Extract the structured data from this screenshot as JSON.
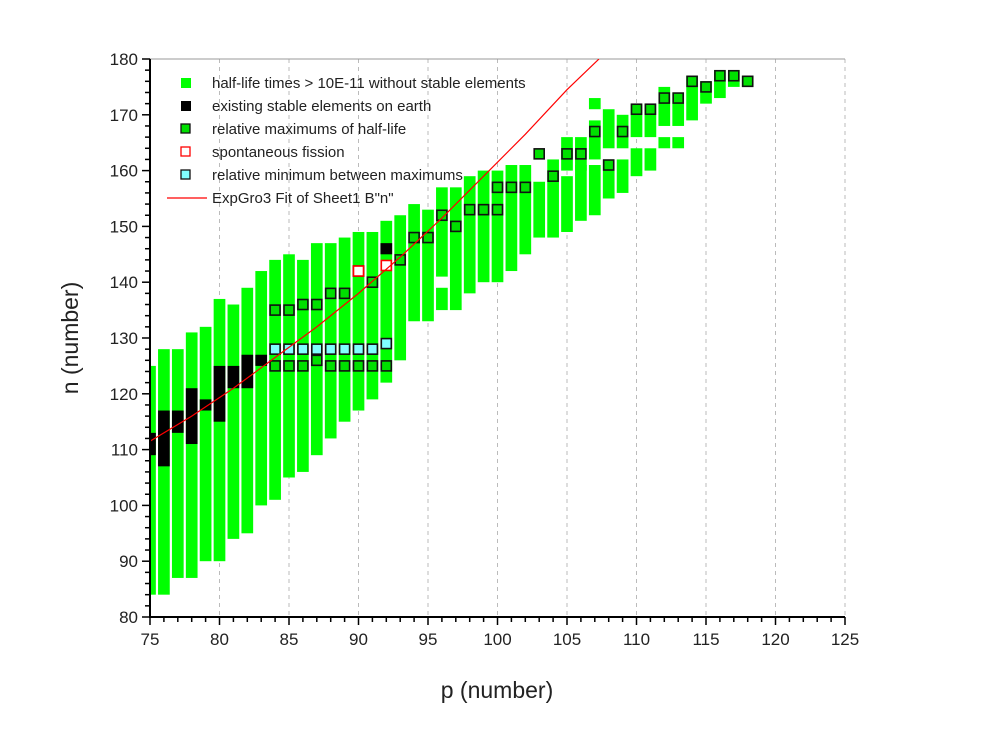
{
  "chart_data": {
    "type": "scatter",
    "xlabel": "p (number)",
    "ylabel": "n (number)",
    "xlim": [
      75,
      125
    ],
    "ylim": [
      80,
      180
    ],
    "xticks": [
      75,
      80,
      85,
      90,
      95,
      100,
      105,
      110,
      115,
      120,
      125
    ],
    "yticks": [
      80,
      90,
      100,
      110,
      120,
      130,
      140,
      150,
      160,
      170,
      180
    ],
    "grid": "vertical dashed",
    "legend_position": "top-left",
    "colors": {
      "halflife": "#00ff00",
      "stable": "#000000",
      "maxima": "#00e000",
      "fission": "#ff0000",
      "minimum": "#80ffff",
      "fit": "#ff0000"
    },
    "legend": [
      {
        "label": "half-life times > 10E-11 without stable elements",
        "kind": "halflife"
      },
      {
        "label": "existing stable elements on earth",
        "kind": "stable"
      },
      {
        "label": "relative maximums of half-life",
        "kind": "maxima"
      },
      {
        "label": "spontaneous fission",
        "kind": "fission"
      },
      {
        "label": "relative minimum between maximums",
        "kind": "minimum"
      },
      {
        "label": "ExpGro3 Fit of Sheet1 B\"n\"",
        "kind": "fit"
      }
    ],
    "halflife_ranges": [
      [
        75,
        84,
        125
      ],
      [
        76,
        84,
        128
      ],
      [
        77,
        87,
        128
      ],
      [
        78,
        87,
        131
      ],
      [
        79,
        90,
        132
      ],
      [
        80,
        90,
        137
      ],
      [
        81,
        94,
        136
      ],
      [
        82,
        95,
        139
      ],
      [
        83,
        100,
        142
      ],
      [
        84,
        101,
        144
      ],
      [
        85,
        105,
        145
      ],
      [
        86,
        106,
        144
      ],
      [
        87,
        109,
        147
      ],
      [
        88,
        112,
        147
      ],
      [
        89,
        115,
        148
      ],
      [
        90,
        117,
        149
      ],
      [
        91,
        119,
        149
      ],
      [
        92,
        122,
        151
      ],
      [
        93,
        126,
        152
      ],
      [
        94,
        133,
        154
      ],
      [
        95,
        133,
        153
      ],
      [
        96,
        141,
        157
      ],
      [
        96,
        135,
        139
      ],
      [
        97,
        135,
        157
      ],
      [
        98,
        138,
        159
      ],
      [
        99,
        140,
        160
      ],
      [
        100,
        140,
        160
      ],
      [
        101,
        142,
        161
      ],
      [
        102,
        145,
        161
      ],
      [
        103,
        148,
        158
      ],
      [
        104,
        148,
        162
      ],
      [
        105,
        160,
        166
      ],
      [
        105,
        149,
        159
      ],
      [
        106,
        160,
        166
      ],
      [
        106,
        151,
        161
      ],
      [
        107,
        171,
        173
      ],
      [
        107,
        162,
        169
      ],
      [
        107,
        152,
        161
      ],
      [
        108,
        164,
        171
      ],
      [
        108,
        155,
        162
      ],
      [
        109,
        164,
        170
      ],
      [
        109,
        156,
        162
      ],
      [
        110,
        166,
        172
      ],
      [
        110,
        159,
        164
      ],
      [
        111,
        166,
        172
      ],
      [
        111,
        160,
        164
      ],
      [
        112,
        168,
        175
      ],
      [
        112,
        164,
        166
      ],
      [
        113,
        168,
        174
      ],
      [
        113,
        164,
        166
      ],
      [
        114,
        169,
        177
      ],
      [
        115,
        172,
        176
      ],
      [
        116,
        173,
        178
      ],
      [
        117,
        175,
        178
      ],
      [
        118,
        175,
        177
      ]
    ],
    "stable_ranges": [
      [
        75,
        109,
        113
      ],
      [
        76,
        107,
        117
      ],
      [
        77,
        113,
        117
      ],
      [
        78,
        111,
        121
      ],
      [
        79,
        117,
        119
      ],
      [
        80,
        115,
        125
      ],
      [
        81,
        121,
        125
      ],
      [
        82,
        121,
        127
      ],
      [
        83,
        125,
        127
      ],
      [
        90,
        141,
        143
      ],
      [
        92,
        145,
        147
      ]
    ],
    "maxima": [
      [
        84,
        135
      ],
      [
        85,
        135
      ],
      [
        86,
        136
      ],
      [
        87,
        136
      ],
      [
        88,
        138
      ],
      [
        89,
        138
      ],
      [
        90,
        142
      ],
      [
        91,
        140
      ],
      [
        93,
        144
      ],
      [
        94,
        148
      ],
      [
        95,
        148
      ],
      [
        96,
        152
      ],
      [
        97,
        150
      ],
      [
        98,
        153
      ],
      [
        99,
        153
      ],
      [
        100,
        153
      ],
      [
        100,
        157
      ],
      [
        101,
        157
      ],
      [
        102,
        157
      ],
      [
        103,
        163
      ],
      [
        104,
        159
      ],
      [
        105,
        163
      ],
      [
        106,
        163
      ],
      [
        107,
        167
      ],
      [
        108,
        161
      ],
      [
        109,
        167
      ],
      [
        110,
        171
      ],
      [
        111,
        171
      ],
      [
        112,
        173
      ],
      [
        113,
        173
      ],
      [
        114,
        176
      ],
      [
        115,
        175
      ],
      [
        116,
        177
      ],
      [
        117,
        177
      ],
      [
        118,
        176
      ],
      [
        84,
        125
      ],
      [
        85,
        125
      ],
      [
        86,
        125
      ],
      [
        87,
        126
      ],
      [
        88,
        125
      ],
      [
        89,
        125
      ],
      [
        90,
        125
      ],
      [
        91,
        125
      ],
      [
        92,
        125
      ]
    ],
    "spontaneous_fission": [
      [
        90,
        142
      ],
      [
        92,
        143
      ]
    ],
    "relative_minimum": [
      [
        84,
        128
      ],
      [
        85,
        128
      ],
      [
        86,
        128
      ],
      [
        87,
        128
      ],
      [
        88,
        128
      ],
      [
        89,
        128
      ],
      [
        90,
        128
      ],
      [
        91,
        128
      ],
      [
        92,
        129
      ]
    ],
    "fit": {
      "name": "ExpGro3 Fit of Sheet1 B\"n\"",
      "x": [
        75,
        78,
        81,
        84,
        87,
        90,
        93,
        96,
        99,
        102,
        105,
        107.3
      ],
      "y": [
        111.5,
        116,
        121,
        126.5,
        132,
        138,
        144.5,
        151.5,
        159,
        166.5,
        174.5,
        180
      ]
    }
  }
}
